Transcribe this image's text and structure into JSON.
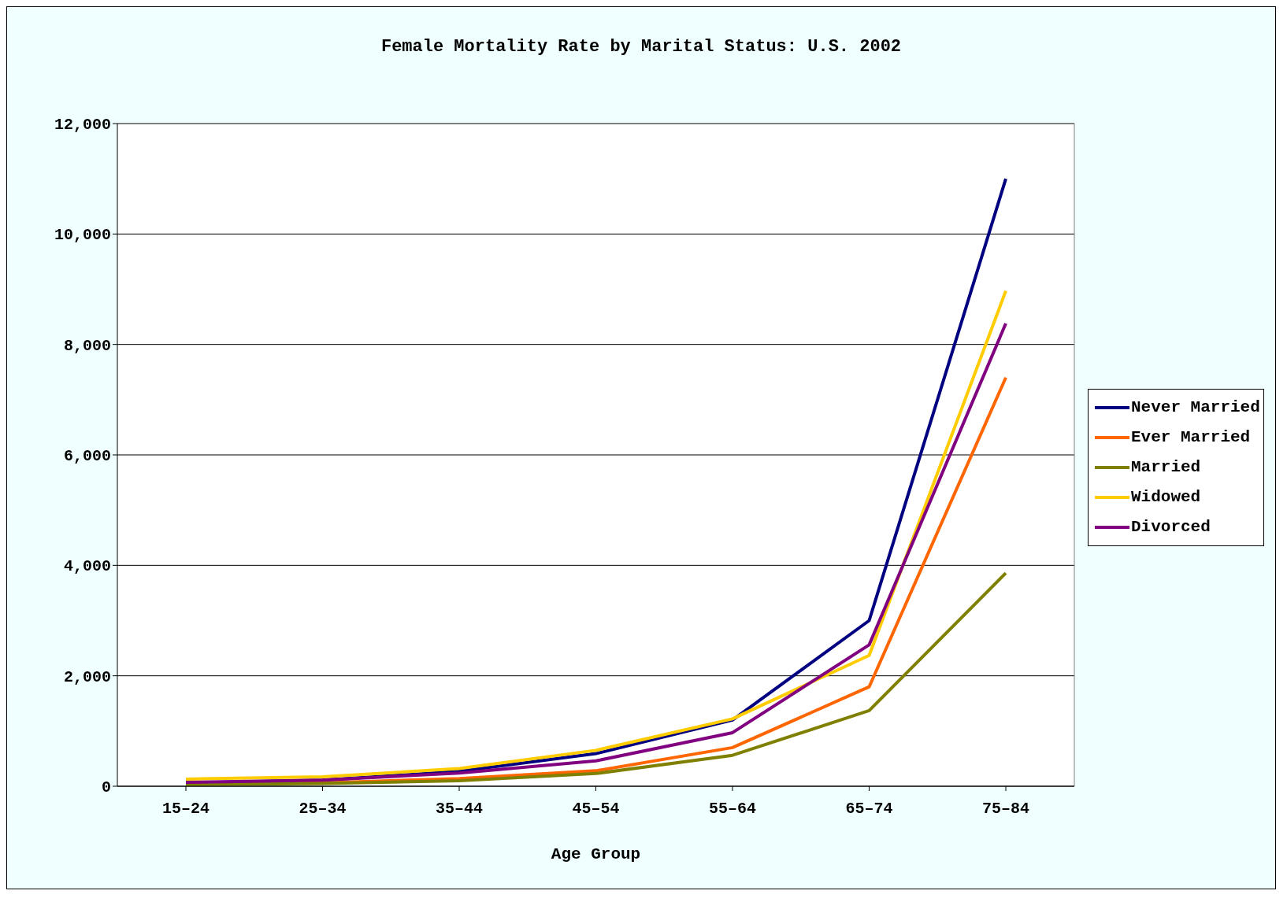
{
  "chart_data": {
    "type": "line",
    "title": "Female Mortality Rate by Marital Status: U.S. 2002",
    "xlabel": "Age Group",
    "categories": [
      "15–24",
      "25–34",
      "35–44",
      "45–54",
      "55–64",
      "65–74",
      "75–84"
    ],
    "series": [
      {
        "name": "Never Married",
        "color": "#000080",
        "values": [
          60,
          110,
          270,
          590,
          1200,
          3000,
          11000
        ]
      },
      {
        "name": "Ever Married",
        "color": "#ff6600",
        "values": [
          40,
          60,
          140,
          280,
          700,
          1800,
          7400
        ]
      },
      {
        "name": "Married",
        "color": "#808000",
        "values": [
          30,
          50,
          100,
          230,
          560,
          1370,
          3860
        ]
      },
      {
        "name": "Widowed",
        "color": "#ffcc00",
        "values": [
          130,
          170,
          320,
          650,
          1220,
          2370,
          8970
        ]
      },
      {
        "name": "Divorced",
        "color": "#800080",
        "values": [
          70,
          110,
          240,
          460,
          970,
          2560,
          8380
        ]
      }
    ],
    "ylim": [
      0,
      12000
    ],
    "yticks": [
      0,
      {
        "value": 2000,
        "label": "2,000"
      },
      {
        "value": 4000,
        "label": "4,000"
      },
      {
        "value": 6000,
        "label": "6,000"
      },
      {
        "value": 8000,
        "label": "8,000"
      },
      {
        "value": 10000,
        "label": "10,000"
      },
      {
        "value": 12000,
        "label": "12,000"
      }
    ],
    "grid": "y",
    "legend": "right",
    "marker": "none",
    "line_style": "solid"
  }
}
